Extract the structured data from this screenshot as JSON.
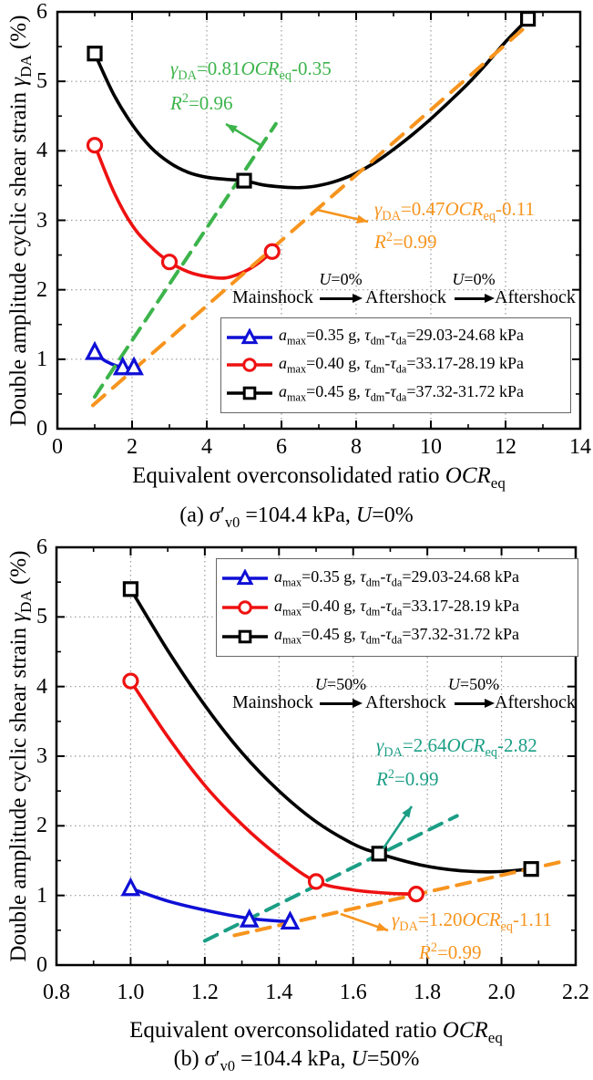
{
  "colors": {
    "grid": "#999999",
    "legend_border": "#666666",
    "axis": "#000000",
    "background": "#ffffff"
  },
  "chart_data": [
    {
      "type": "line",
      "panel": "a",
      "caption_rich": "(a)  *σ*′_{v0} =104.4 kPa, *U*=0%",
      "xlabel_rich": "Equivalent overconsolidated ratio *OCR*_{eq}",
      "ylabel_rich": "Double amplitude cyclic shear strain *γ*_{DA} (%)",
      "xlim": [
        0,
        14
      ],
      "ylim": [
        0,
        6
      ],
      "x_ticks": [
        0,
        2,
        4,
        6,
        8,
        10,
        12,
        14
      ],
      "x_tick_labels": [
        "0",
        "2",
        "4",
        "6",
        "8",
        "10",
        "12",
        "14"
      ],
      "y_ticks": [
        0,
        1,
        2,
        3,
        4,
        5,
        6
      ],
      "y_tick_labels": [
        "0",
        "1",
        "2",
        "3",
        "4",
        "5",
        "6"
      ],
      "x_minor_step": 1,
      "y_minor_step": 0.5,
      "grid": true,
      "legend_position": "inside-lower-right",
      "series": [
        {
          "name": "amax=0.35 g",
          "label_rich": "*a*_{max}=0.35 g, *τ*_{dm}-*τ*_{da}=29.03-24.68 kPa",
          "color": "#0f0fd6",
          "marker": "triangle",
          "points": [
            [
              1.0,
              1.1
            ],
            [
              1.75,
              0.88
            ],
            [
              2.05,
              0.88
            ]
          ],
          "curve": [
            [
              1.0,
              1.1
            ],
            [
              1.3,
              0.97
            ],
            [
              1.75,
              0.88
            ],
            [
              2.05,
              0.88
            ]
          ]
        },
        {
          "name": "amax=0.40 g",
          "label_rich": "*a*_{max}=0.40 g, *τ*_{dm}-*τ*_{da}=33.17-28.19 kPa",
          "color": "#ee1111",
          "marker": "circle",
          "points": [
            [
              1.0,
              4.08
            ],
            [
              3.0,
              2.4
            ],
            [
              5.75,
              2.55
            ]
          ],
          "curve": [
            [
              1.0,
              4.08
            ],
            [
              1.5,
              3.42
            ],
            [
              2.0,
              2.93
            ],
            [
              2.5,
              2.62
            ],
            [
              3.0,
              2.4
            ],
            [
              3.5,
              2.26
            ],
            [
              4.0,
              2.19
            ],
            [
              4.5,
              2.17
            ],
            [
              5.0,
              2.26
            ],
            [
              5.4,
              2.39
            ],
            [
              5.75,
              2.55
            ]
          ]
        },
        {
          "name": "amax=0.45 g",
          "label_rich": "*a*_{max}=0.45 g, *τ*_{dm}-*τ*_{da}=37.32-31.72 kPa",
          "color": "#000000",
          "marker": "square",
          "points": [
            [
              1.0,
              5.4
            ],
            [
              5.0,
              3.57
            ],
            [
              12.6,
              5.9
            ]
          ],
          "curve": [
            [
              1.0,
              5.4
            ],
            [
              1.5,
              4.82
            ],
            [
              2.0,
              4.38
            ],
            [
              2.5,
              4.05
            ],
            [
              3.0,
              3.83
            ],
            [
              3.5,
              3.69
            ],
            [
              4.0,
              3.62
            ],
            [
              4.5,
              3.59
            ],
            [
              5.0,
              3.57
            ],
            [
              5.5,
              3.51
            ],
            [
              6.0,
              3.48
            ],
            [
              6.5,
              3.47
            ],
            [
              7.0,
              3.5
            ],
            [
              7.5,
              3.57
            ],
            [
              8.0,
              3.68
            ],
            [
              8.5,
              3.83
            ],
            [
              9.0,
              4.02
            ],
            [
              9.5,
              4.23
            ],
            [
              10.0,
              4.46
            ],
            [
              10.5,
              4.71
            ],
            [
              11.0,
              4.97
            ],
            [
              11.5,
              5.26
            ],
            [
              12.0,
              5.57
            ],
            [
              12.6,
              5.9
            ]
          ]
        }
      ],
      "fits": [
        {
          "equation_rich": "*γ*_{DA}=0.81*OCR*_{eq}-0.35",
          "r2_rich": "*R*^{2}=0.96",
          "slope": 0.81,
          "intercept": -0.35,
          "color": "#3cb44b",
          "x_range": [
            1.0,
            5.85
          ]
        },
        {
          "equation_rich": "*γ*_{DA}=0.47*OCR*_{eq}-0.11",
          "r2_rich": "*R*^{2}=0.99",
          "slope": 0.47,
          "intercept": -0.11,
          "color": "#f7941e",
          "x_range": [
            0.95,
            12.75
          ]
        }
      ],
      "flow": {
        "steps": [
          "Mainshock",
          "Aftershock",
          "Aftershock"
        ],
        "u_labels_rich": [
          "*U*=0%",
          "*U*=0%"
        ]
      }
    },
    {
      "type": "line",
      "panel": "b",
      "caption_rich": "(b)  *σ*′_{v0} =104.4 kPa, *U*=50%",
      "xlabel_rich": "Equivalent overconsolidated ratio *OCR*_{eq}",
      "ylabel_rich": "Double amplitude cyclic shear strain *γ*_{DA} (%)",
      "xlim": [
        0.8,
        2.2
      ],
      "ylim": [
        0,
        6
      ],
      "x_ticks": [
        0.8,
        1.0,
        1.2,
        1.4,
        1.6,
        1.8,
        2.0,
        2.2
      ],
      "x_tick_labels": [
        "0.8",
        "1.0",
        "1.2",
        "1.4",
        "1.6",
        "1.8",
        "2.0",
        "2.2"
      ],
      "y_ticks": [
        0,
        1,
        2,
        3,
        4,
        5,
        6
      ],
      "y_tick_labels": [
        "0",
        "1",
        "2",
        "3",
        "4",
        "5",
        "6"
      ],
      "x_minor_step": 0.1,
      "y_minor_step": 0.5,
      "grid": true,
      "legend_position": "inside-upper-right",
      "series": [
        {
          "name": "amax=0.35 g",
          "label_rich": "*a*_{max}=0.35 g, *τ*_{dm}-*τ*_{da}=29.03-24.68 kPa",
          "color": "#0f0fd6",
          "marker": "triangle",
          "points": [
            [
              1.0,
              1.1
            ],
            [
              1.32,
              0.65
            ],
            [
              1.43,
              0.62
            ]
          ],
          "curve": [
            [
              1.0,
              1.1
            ],
            [
              1.1,
              0.92
            ],
            [
              1.2,
              0.79
            ],
            [
              1.32,
              0.67
            ],
            [
              1.43,
              0.62
            ]
          ]
        },
        {
          "name": "amax=0.40 g",
          "label_rich": "*a*_{max}=0.40 g, *τ*_{dm}-*τ*_{da}=33.17-28.19 kPa",
          "color": "#ee1111",
          "marker": "circle",
          "points": [
            [
              1.0,
              4.08
            ],
            [
              1.5,
              1.2
            ],
            [
              1.77,
              1.02
            ]
          ],
          "curve": [
            [
              1.0,
              4.08
            ],
            [
              1.1,
              3.28
            ],
            [
              1.2,
              2.58
            ],
            [
              1.3,
              2.02
            ],
            [
              1.4,
              1.56
            ],
            [
              1.5,
              1.2
            ],
            [
              1.6,
              1.08
            ],
            [
              1.7,
              1.03
            ],
            [
              1.77,
              1.02
            ]
          ]
        },
        {
          "name": "amax=0.45 g",
          "label_rich": "*a*_{max}=0.45 g, *τ*_{dm}-*τ*_{da}=37.32-31.72 kPa",
          "color": "#000000",
          "marker": "square",
          "points": [
            [
              1.0,
              5.4
            ],
            [
              1.67,
              1.6
            ],
            [
              2.08,
              1.38
            ]
          ],
          "curve": [
            [
              1.0,
              5.4
            ],
            [
              1.1,
              4.52
            ],
            [
              1.2,
              3.73
            ],
            [
              1.3,
              3.05
            ],
            [
              1.4,
              2.5
            ],
            [
              1.5,
              2.06
            ],
            [
              1.6,
              1.74
            ],
            [
              1.67,
              1.6
            ],
            [
              1.78,
              1.44
            ],
            [
              1.88,
              1.36
            ],
            [
              1.98,
              1.34
            ],
            [
              2.08,
              1.38
            ]
          ]
        }
      ],
      "fits": [
        {
          "equation_rich": "*γ*_{DA}=2.64*OCR*_{eq}-2.82",
          "r2_rich": "*R*^{2}=0.99",
          "slope": 2.64,
          "intercept": -2.82,
          "color": "#1b9e85",
          "x_range": [
            1.2,
            1.88
          ]
        },
        {
          "equation_rich": "*γ*_{DA}=1.20*OCR*_{eq}-1.11",
          "r2_rich": "*R*^{2}=0.99",
          "slope": 1.2,
          "intercept": -1.11,
          "color": "#f7941e",
          "x_range": [
            1.28,
            2.17
          ]
        }
      ],
      "flow": {
        "steps": [
          "Mainshock",
          "Aftershock",
          "Aftershock"
        ],
        "u_labels_rich": [
          "*U*=50%",
          "*U*=50%"
        ]
      }
    }
  ]
}
